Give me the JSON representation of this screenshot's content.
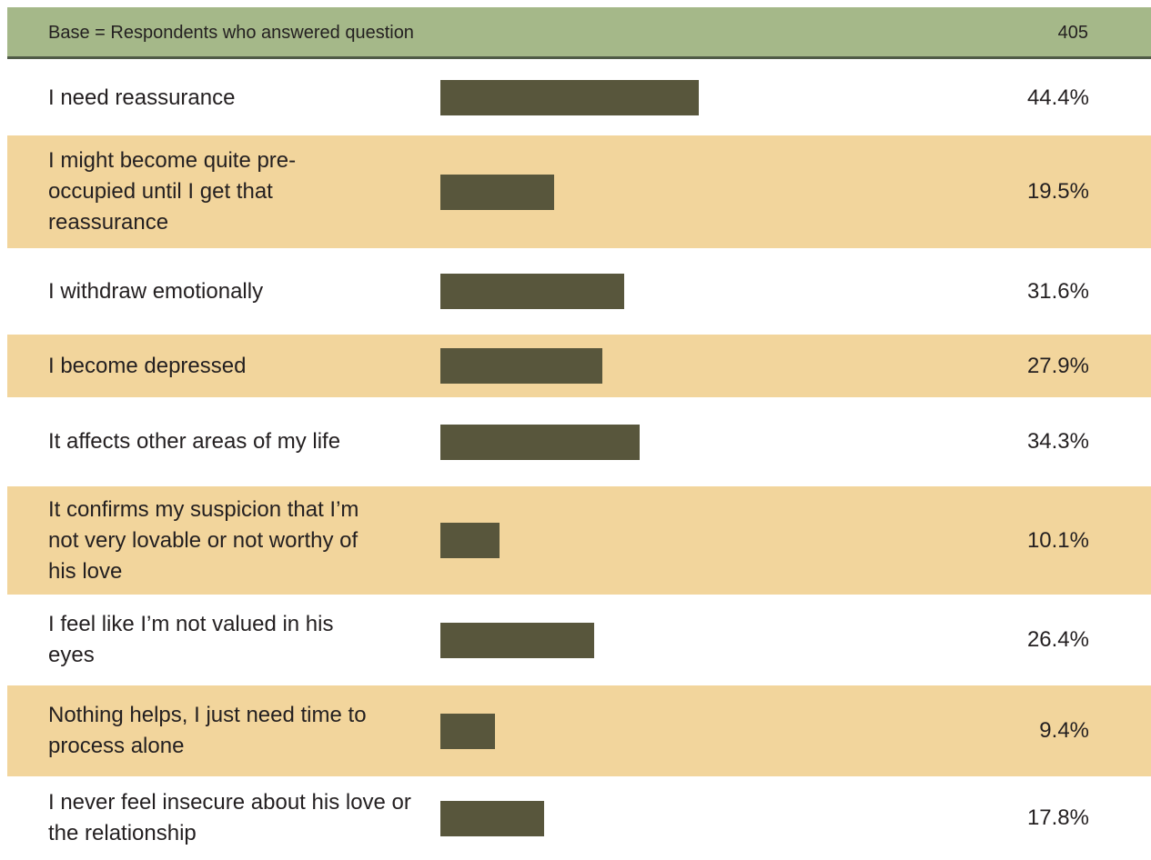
{
  "header": {
    "base_label": "Base = Respondents who answered question",
    "base_count": "405"
  },
  "colors": {
    "header_bg": "#a5b889",
    "header_rule": "#4f5a46",
    "alt_row_bg": "#f2d59c",
    "bar": "#58563c"
  },
  "chart_data": {
    "type": "bar",
    "orientation": "horizontal",
    "categories": [
      "I need reassurance",
      "I might become quite pre-occupied until I get that reassurance",
      "I withdraw emotionally",
      "I become depressed",
      "It affects other areas of my life",
      "It confirms my suspicion that I’m not very lovable or not worthy of his love",
      "I feel like I’m not valued in his eyes",
      "Nothing helps, I just need time to process alone",
      "I never feel insecure about his love or the relationship"
    ],
    "values": [
      44.4,
      19.5,
      31.6,
      27.9,
      34.3,
      10.1,
      26.4,
      9.4,
      17.8
    ],
    "value_labels": [
      "44.4%",
      "19.5%",
      "31.6%",
      "27.9%",
      "34.3%",
      "10.1%",
      "26.4%",
      "9.4%",
      "17.8%"
    ],
    "unit": "%",
    "grid": false,
    "legend": "none"
  }
}
